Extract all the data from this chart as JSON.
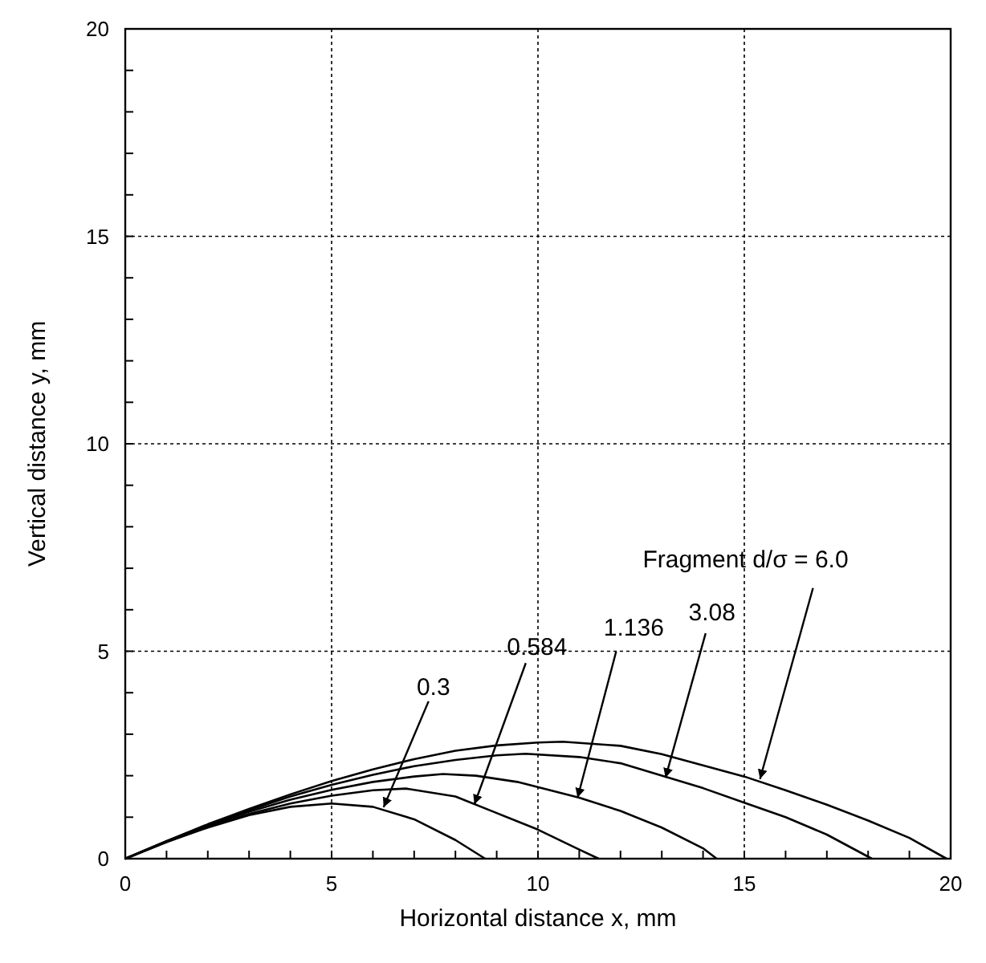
{
  "chart_data": {
    "type": "line",
    "xlabel": "Horizontal distance x, mm",
    "ylabel": "Vertical distance y, mm",
    "xlim": [
      0,
      20
    ],
    "ylim": [
      0,
      20
    ],
    "xticks": [
      0,
      {
        "value": 1,
        "label": null
      },
      {
        "value": 2,
        "label": null
      },
      {
        "value": 3,
        "label": null
      },
      {
        "value": 4,
        "label": null
      },
      5,
      {
        "value": 6,
        "label": null
      },
      {
        "value": 7,
        "label": null
      },
      {
        "value": 8,
        "label": null
      },
      {
        "value": 9,
        "label": null
      },
      10,
      {
        "value": 11,
        "label": null
      },
      {
        "value": 12,
        "label": null
      },
      {
        "value": 13,
        "label": null
      },
      {
        "value": 14,
        "label": null
      },
      15,
      {
        "value": 16,
        "label": null
      },
      {
        "value": 17,
        "label": null
      },
      {
        "value": 18,
        "label": null
      },
      {
        "value": 19,
        "label": null
      },
      20
    ],
    "yticks": [
      0,
      {
        "value": 1,
        "label": null
      },
      {
        "value": 2,
        "label": null
      },
      {
        "value": 3,
        "label": null
      },
      {
        "value": 4,
        "label": null
      },
      5,
      {
        "value": 6,
        "label": null
      },
      {
        "value": 7,
        "label": null
      },
      {
        "value": 8,
        "label": null
      },
      {
        "value": 9,
        "label": null
      },
      10,
      {
        "value": 11,
        "label": null
      },
      {
        "value": 12,
        "label": null
      },
      {
        "value": 13,
        "label": null
      },
      {
        "value": 14,
        "label": null
      },
      15,
      {
        "value": 16,
        "label": null
      },
      {
        "value": 17,
        "label": null
      },
      {
        "value": 18,
        "label": null
      },
      {
        "value": 19,
        "label": null
      },
      20
    ],
    "grid": true,
    "marker": "none",
    "line_style": "solid",
    "series": [
      {
        "color": "#000000",
        "x": [
          0,
          1,
          2,
          3,
          4,
          5,
          6,
          7,
          8,
          8.72
        ],
        "values": [
          0,
          0.4,
          0.75,
          1.05,
          1.25,
          1.33,
          1.25,
          0.95,
          0.45,
          0
        ]
      },
      {
        "color": "#000000",
        "x": [
          0,
          1,
          2,
          3,
          4,
          5,
          6,
          6.8,
          8,
          9,
          10,
          11,
          11.47
        ],
        "values": [
          0,
          0.4,
          0.77,
          1.08,
          1.33,
          1.52,
          1.65,
          1.69,
          1.5,
          1.1,
          0.7,
          0.22,
          0
        ]
      },
      {
        "color": "#000000",
        "x": [
          0,
          1,
          2,
          3,
          4,
          5,
          6,
          7,
          7.7,
          8.5,
          9.5,
          11,
          12,
          13,
          14,
          14.33
        ],
        "values": [
          0,
          0.42,
          0.8,
          1.13,
          1.42,
          1.66,
          1.85,
          1.98,
          2.04,
          2.0,
          1.85,
          1.47,
          1.15,
          0.75,
          0.25,
          0
        ]
      },
      {
        "color": "#000000",
        "x": [
          0,
          1,
          2,
          3,
          4,
          5,
          6,
          7,
          8,
          9,
          9.7,
          11,
          12,
          13,
          14,
          15,
          16,
          17,
          18.09
        ],
        "values": [
          0,
          0.42,
          0.82,
          1.17,
          1.5,
          1.78,
          2.02,
          2.23,
          2.38,
          2.49,
          2.53,
          2.45,
          2.3,
          2.0,
          1.7,
          1.35,
          1.0,
          0.58,
          0
        ]
      },
      {
        "color": "#000000",
        "x": [
          0,
          1,
          2,
          3,
          4,
          5,
          6,
          7,
          8,
          9,
          10,
          10.6,
          12,
          13,
          14,
          15,
          16,
          17,
          18,
          19,
          19.9
        ],
        "values": [
          0,
          0.42,
          0.83,
          1.2,
          1.55,
          1.87,
          2.15,
          2.4,
          2.6,
          2.73,
          2.8,
          2.82,
          2.72,
          2.52,
          2.25,
          1.98,
          1.65,
          1.3,
          0.92,
          0.5,
          0
        ]
      }
    ],
    "annotations": [
      {
        "text": "0.3",
        "x": 6.26,
        "y": 1.24
      },
      {
        "text": "0.584",
        "x": 8.46,
        "y": 1.31
      },
      {
        "text": "1.136",
        "x": 10.96,
        "y": 1.47
      },
      {
        "text": "3.08",
        "x": 13.09,
        "y": 1.95
      },
      {
        "text": "Fragment d/σ = 6.0",
        "x": 15.38,
        "y": 1.92
      }
    ]
  }
}
